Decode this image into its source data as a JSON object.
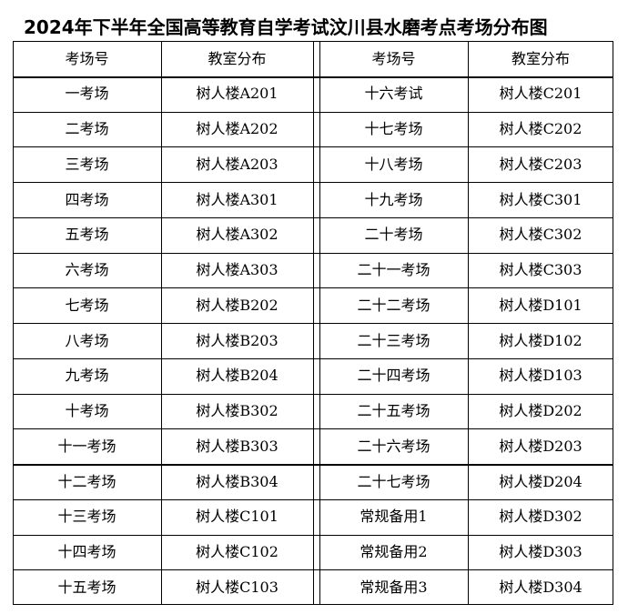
{
  "title": "2024年下半年全国高等教育自学考试汶川县水磨考点考场分布图",
  "headers": [
    "考场号",
    "教室分布",
    "考场号",
    "教室分布"
  ],
  "rows": [
    [
      "一考场",
      "树人楼A201",
      "十六考试",
      "树人楼C201"
    ],
    [
      "二考场",
      "树人楼A202",
      "十七考场",
      "树人楼C202"
    ],
    [
      "三考场",
      "树人楼A203",
      "十八考场",
      "树人楼C203"
    ],
    [
      "四考场",
      "树人楼A301",
      "十九考场",
      "树人楼C301"
    ],
    [
      "五考场",
      "树人楼A302",
      "二十考场",
      "树人楼C302"
    ],
    [
      "六考场",
      "树人楼A303",
      "二十一考场",
      "树人楼C303"
    ],
    [
      "七考场",
      "树人楼B202",
      "二十二考场",
      "树人楼D101"
    ],
    [
      "八考场",
      "树人楼B203",
      "二十三考场",
      "树人楼D102"
    ],
    [
      "九考场",
      "树人楼B204",
      "二十四考场",
      "树人楼D103"
    ],
    [
      "十考场",
      "树人楼B302",
      "二十五考场",
      "树人楼D202"
    ],
    [
      "十一考场",
      "树人楼B303",
      "二十六考场",
      "树人楼D203"
    ],
    [
      "十二考场",
      "树人楼B304",
      "二十七考场",
      "树人楼D204"
    ],
    [
      "十三考场",
      "树人楼C101",
      "常规备用1",
      "树人楼D302"
    ],
    [
      "十四考场",
      "树人楼C102",
      "常规备用2",
      "树人楼D303"
    ],
    [
      "十五考场",
      "树人楼C103",
      "常规备用3",
      "树人楼D304"
    ]
  ]
}
